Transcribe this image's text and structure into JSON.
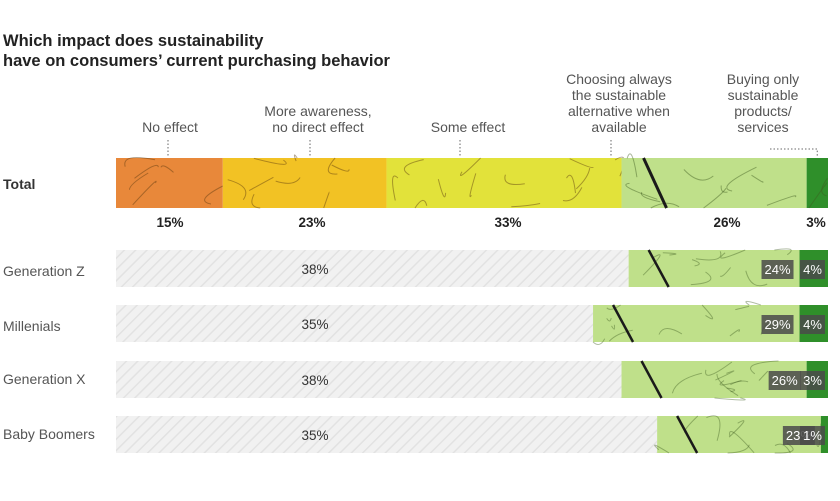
{
  "chart_data": {
    "type": "bar",
    "stacked": true,
    "orientation": "horizontal",
    "title": [
      "Which impact does sustainability",
      "have on consumers’ current purchasing behavior"
    ],
    "scale_max": 100,
    "categories": [
      "Total",
      "Generation Z",
      "Millenials",
      "Generation X",
      "Baby Boomers"
    ],
    "segments": [
      {
        "name": "No effect",
        "lines": [
          "No effect"
        ],
        "color": "#e8883a"
      },
      {
        "name": "More awareness, no direct effect",
        "lines": [
          "More awareness,",
          "no direct effect"
        ],
        "color": "#f2c224"
      },
      {
        "name": "Some effect",
        "lines": [
          "Some effect"
        ],
        "color": "#e2e23a"
      },
      {
        "name": "Choosing always the sustainable alternative when available",
        "lines": [
          "Choosing always",
          "the sustainable",
          "alternative when",
          "available"
        ],
        "color": "#bfe08a"
      },
      {
        "name": "Buying only sustainable products/ services",
        "lines": [
          "Buying only",
          "sustainable",
          "products/",
          "services"
        ],
        "color": "#2f8f2a"
      }
    ],
    "total": {
      "values": [
        15,
        23,
        33,
        26,
        3
      ],
      "labels": [
        "15%",
        "23%",
        "33%",
        "26%",
        "3%"
      ]
    },
    "generations": [
      {
        "name": "Generation Z",
        "other": 38,
        "other_label": "38%",
        "always": 24,
        "always_label": "24%",
        "only": 4,
        "only_label": "4%"
      },
      {
        "name": "Millenials",
        "other": 35,
        "other_label": "35%",
        "always": 29,
        "always_label": "29%",
        "only": 4,
        "only_label": "4%"
      },
      {
        "name": "Generation X",
        "other": 38,
        "other_label": "38%",
        "always": 26,
        "always_label": "26%",
        "only": 3,
        "only_label": "3%"
      },
      {
        "name": "Baby Boomers",
        "other": 35,
        "other_label": "35%",
        "always": 23,
        "always_label": "23%",
        "only": 1,
        "only_label": "1%"
      }
    ],
    "other_bar_color": "#efefef",
    "badge_color": "#4a4a4a"
  }
}
